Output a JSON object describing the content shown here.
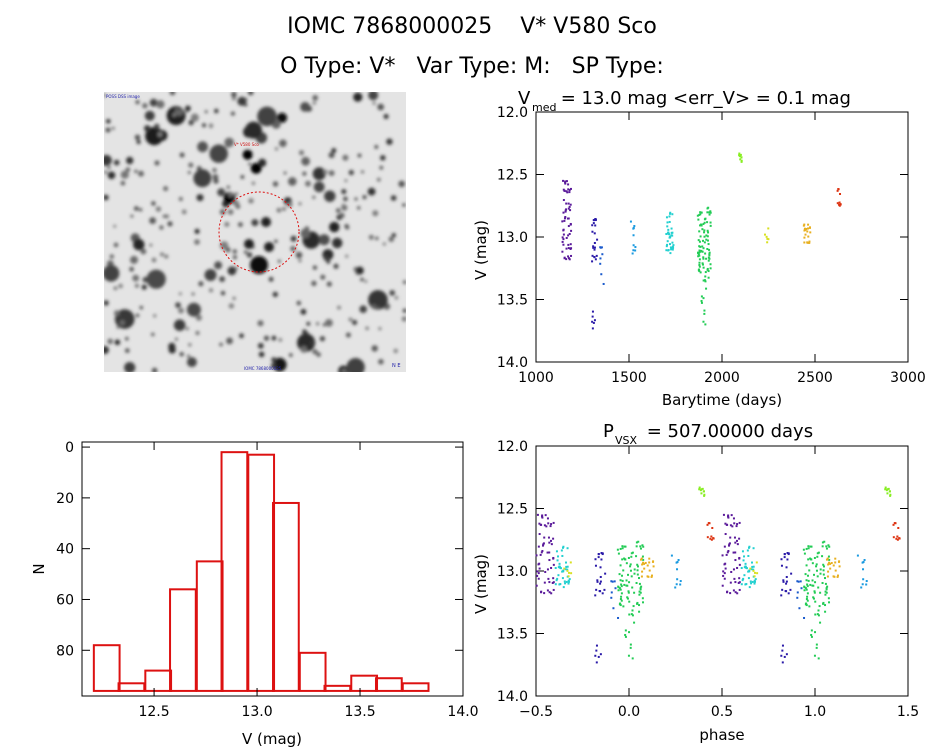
{
  "header": {
    "line1_id": "IOMC 7868000025",
    "line1_name": "V* V580 Sco",
    "line2_otype": "O Type: V*",
    "line2_vartype": "Var Type: M:",
    "line2_sptype": "SP Type:"
  },
  "image_panel": {
    "top_left_label": "POSS DSS image",
    "target_label": "V* V580 Sco",
    "bottom_label": "IOMC 7868000025",
    "compass": "N E"
  },
  "colors": {
    "hist_bar": "#dd1111",
    "circle": "#dd1111",
    "seasons": [
      "#5a1a9a",
      "#2a1aa8",
      "#1a5acc",
      "#1a9ae0",
      "#22d0d0",
      "#22cc55",
      "#88ee22",
      "#d8e020",
      "#e8b020",
      "#dd3311"
    ]
  },
  "chart_data": [
    {
      "type": "scatter",
      "title_main": "V",
      "title_sub": "med",
      "title_rest": " = 13.0 mag <err_V> = 0.1 mag",
      "xlabel": "Barytime (days)",
      "ylabel": "V (mag)",
      "xlim": [
        1000,
        3000
      ],
      "ylim": [
        14.0,
        12.0
      ],
      "y_inverted": true,
      "xticks": [
        "1000",
        "1500",
        "2000",
        "2500",
        "3000"
      ],
      "yticks": [
        "12.0",
        "12.5",
        "13.0",
        "13.5",
        "14.0"
      ],
      "seasons": [
        {
          "x": [
            1140,
            1190
          ],
          "y": [
            12.55,
            13.2
          ],
          "color": 0,
          "n": 60
        },
        {
          "x": [
            1300,
            1330
          ],
          "y": [
            12.85,
            13.2
          ],
          "color": 1,
          "n": 22
        },
        {
          "x": [
            1300,
            1320
          ],
          "y": [
            13.55,
            13.8
          ],
          "color": 1,
          "n": 6
        },
        {
          "x": [
            1345,
            1365
          ],
          "y": [
            12.95,
            13.4
          ],
          "color": 2,
          "n": 8
        },
        {
          "x": [
            1510,
            1535
          ],
          "y": [
            12.85,
            13.15
          ],
          "color": 3,
          "n": 10
        },
        {
          "x": [
            1700,
            1740
          ],
          "y": [
            12.8,
            13.15
          ],
          "color": 4,
          "n": 40
        },
        {
          "x": [
            1870,
            1940
          ],
          "y": [
            12.75,
            13.35
          ],
          "color": 5,
          "n": 90
        },
        {
          "x": [
            1890,
            1930
          ],
          "y": [
            13.35,
            13.7
          ],
          "color": 5,
          "n": 10
        },
        {
          "x": [
            2090,
            2110
          ],
          "y": [
            12.25,
            12.4
          ],
          "color": 6,
          "n": 10
        },
        {
          "x": [
            2230,
            2250
          ],
          "y": [
            12.9,
            13.05
          ],
          "color": 7,
          "n": 6
        },
        {
          "x": [
            2440,
            2480
          ],
          "y": [
            12.9,
            13.05
          ],
          "color": 8,
          "n": 20
        },
        {
          "x": [
            2620,
            2640
          ],
          "y": [
            12.6,
            12.75
          ],
          "color": 9,
          "n": 10
        }
      ]
    },
    {
      "type": "bar",
      "title": "",
      "xlabel": "V (mag)",
      "ylabel": "N",
      "xlim": [
        12.15,
        14.0
      ],
      "ylim": [
        -2,
        98
      ],
      "xticks": [
        "12.5",
        "13.0",
        "13.5",
        "14.0"
      ],
      "yticks": [
        "0",
        "20",
        "40",
        "60",
        "80"
      ],
      "bin_width": 0.125,
      "bin_centers": [
        12.27,
        12.39,
        12.52,
        12.64,
        12.77,
        12.89,
        13.02,
        13.14,
        13.27,
        13.39,
        13.52,
        13.64,
        13.77
      ],
      "values": [
        18,
        3,
        8,
        40,
        51,
        94,
        93,
        74,
        15,
        2,
        6,
        5,
        3
      ]
    },
    {
      "type": "scatter",
      "title_main": "P",
      "title_sub": "VSX",
      "title_rest": " = 507.00000 days",
      "xlabel": "phase",
      "ylabel": "V (mag)",
      "xlim": [
        -0.5,
        1.5
      ],
      "ylim": [
        14.0,
        12.0
      ],
      "y_inverted": true,
      "xticks": [
        "−0.5",
        "0.0",
        "0.5",
        "1.0",
        "1.5"
      ],
      "yticks": [
        "12.0",
        "12.5",
        "13.0",
        "13.5",
        "14.0"
      ],
      "period_days": 507.0
    }
  ]
}
